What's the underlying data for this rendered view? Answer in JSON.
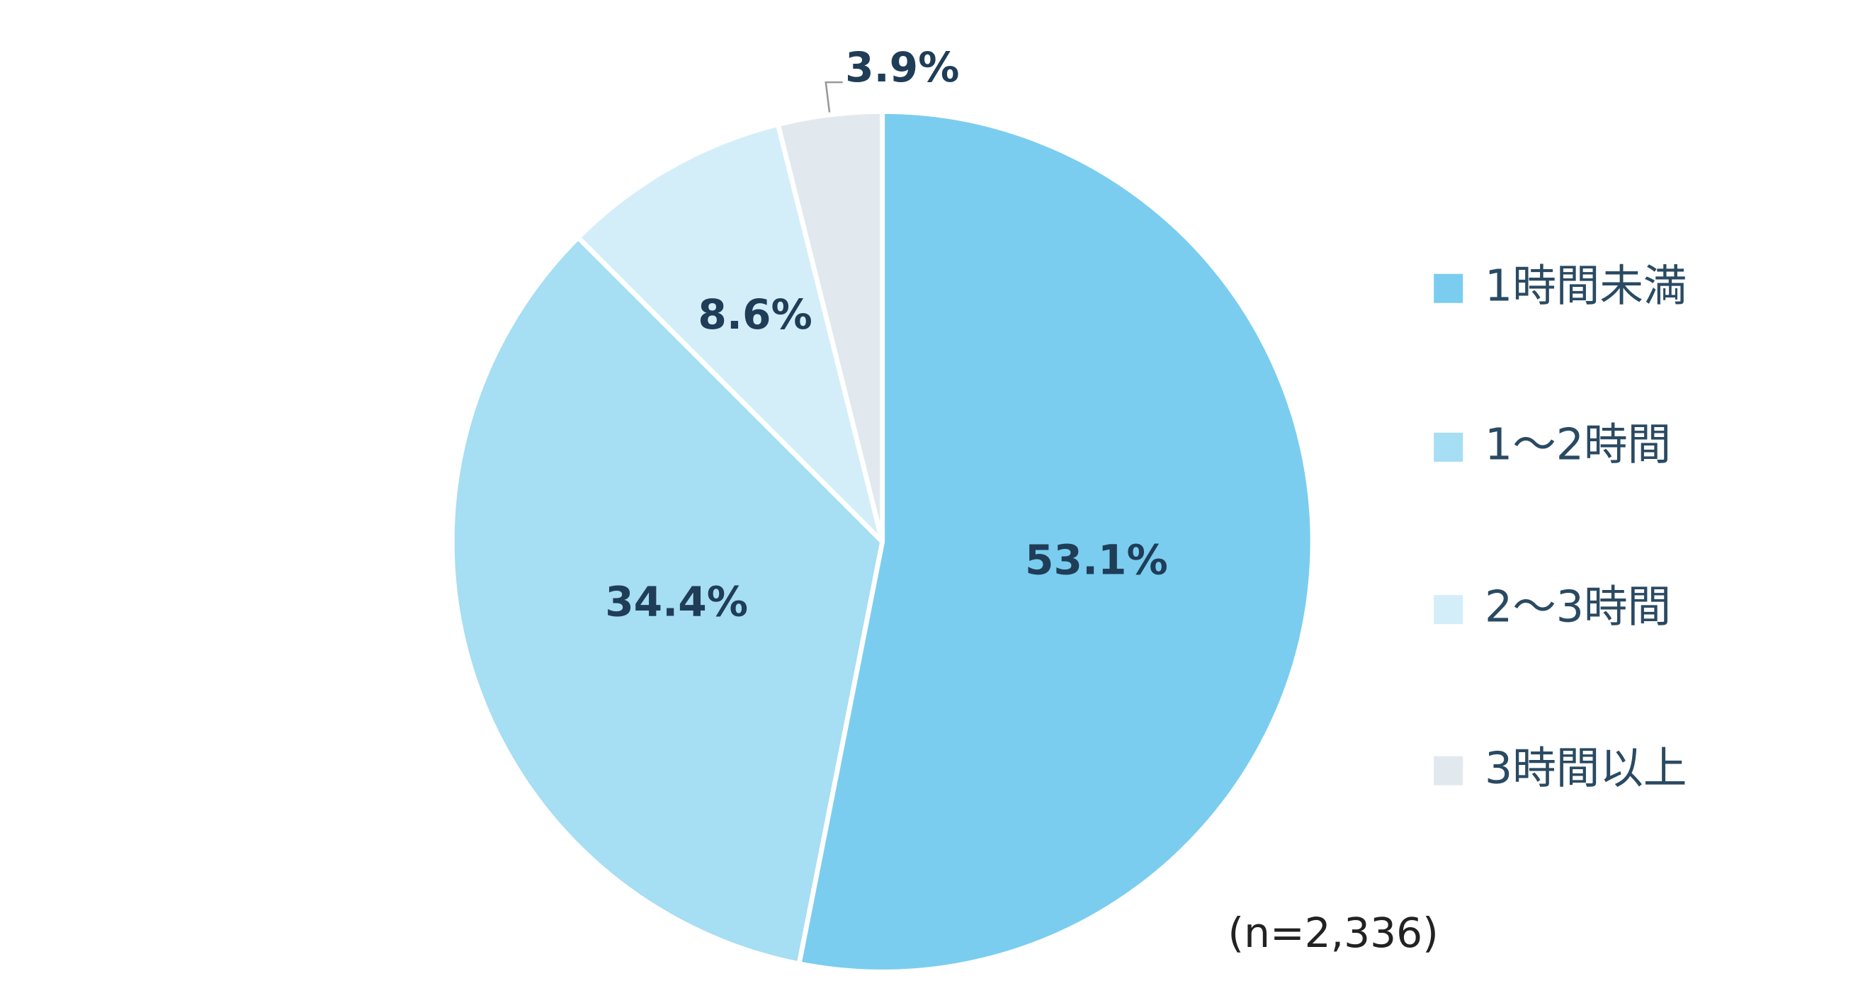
{
  "chart_data": {
    "type": "pie",
    "categories": [
      "1時間未満",
      "1～2時間",
      "2～3時間",
      "3時間以上"
    ],
    "values": [
      53.1,
      34.4,
      8.6,
      3.9
    ],
    "value_labels": [
      "53.1%",
      "34.4%",
      "8.6%",
      "3.9%"
    ],
    "colors": [
      "#7acdef",
      "#a6def3",
      "#d3eef9",
      "#e2e9ee"
    ],
    "annotation": "(n=2,336)",
    "legend": "right"
  }
}
